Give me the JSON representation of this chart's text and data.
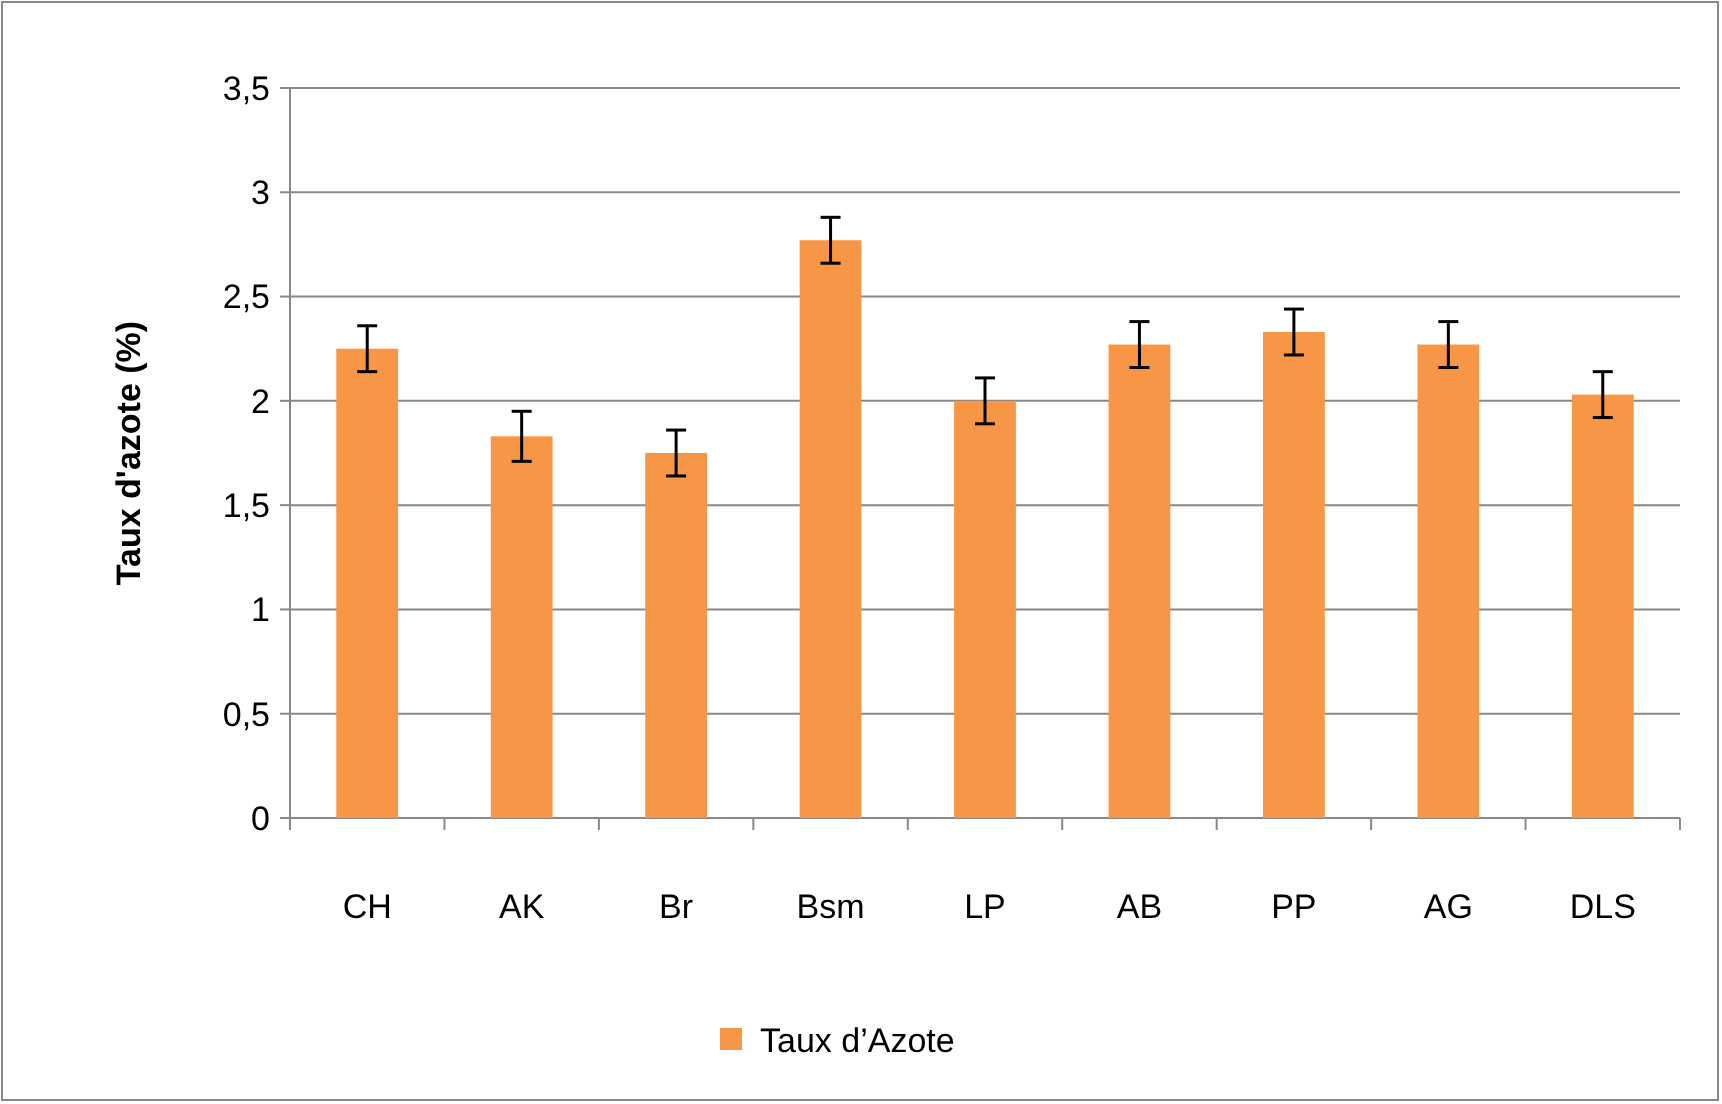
{
  "chart_data": {
    "type": "bar",
    "ylabel": "Taux d'azote (%)",
    "categories": [
      "CH",
      "AK",
      "Br",
      "Bsm",
      "LP",
      "AB",
      "PP",
      "AG",
      "DLS"
    ],
    "series": [
      {
        "name": "Taux d’Azote",
        "color": "#f79646",
        "values": [
          2.25,
          1.83,
          1.75,
          2.77,
          2.0,
          2.27,
          2.33,
          2.27,
          2.03
        ],
        "errors": [
          0.11,
          0.12,
          0.11,
          0.11,
          0.11,
          0.11,
          0.11,
          0.11,
          0.11
        ]
      }
    ],
    "ylim": [
      0,
      3.5
    ],
    "yticks": [
      {
        "value": 0,
        "label": "0"
      },
      {
        "value": 0.5,
        "label": "0,5"
      },
      {
        "value": 1,
        "label": "1"
      },
      {
        "value": 1.5,
        "label": "1,5"
      },
      {
        "value": 2,
        "label": "2"
      },
      {
        "value": 2.5,
        "label": "2,5"
      },
      {
        "value": 3,
        "label": "3"
      },
      {
        "value": 3.5,
        "label": "3,5"
      }
    ],
    "grid": "y",
    "legend": "bottom"
  }
}
